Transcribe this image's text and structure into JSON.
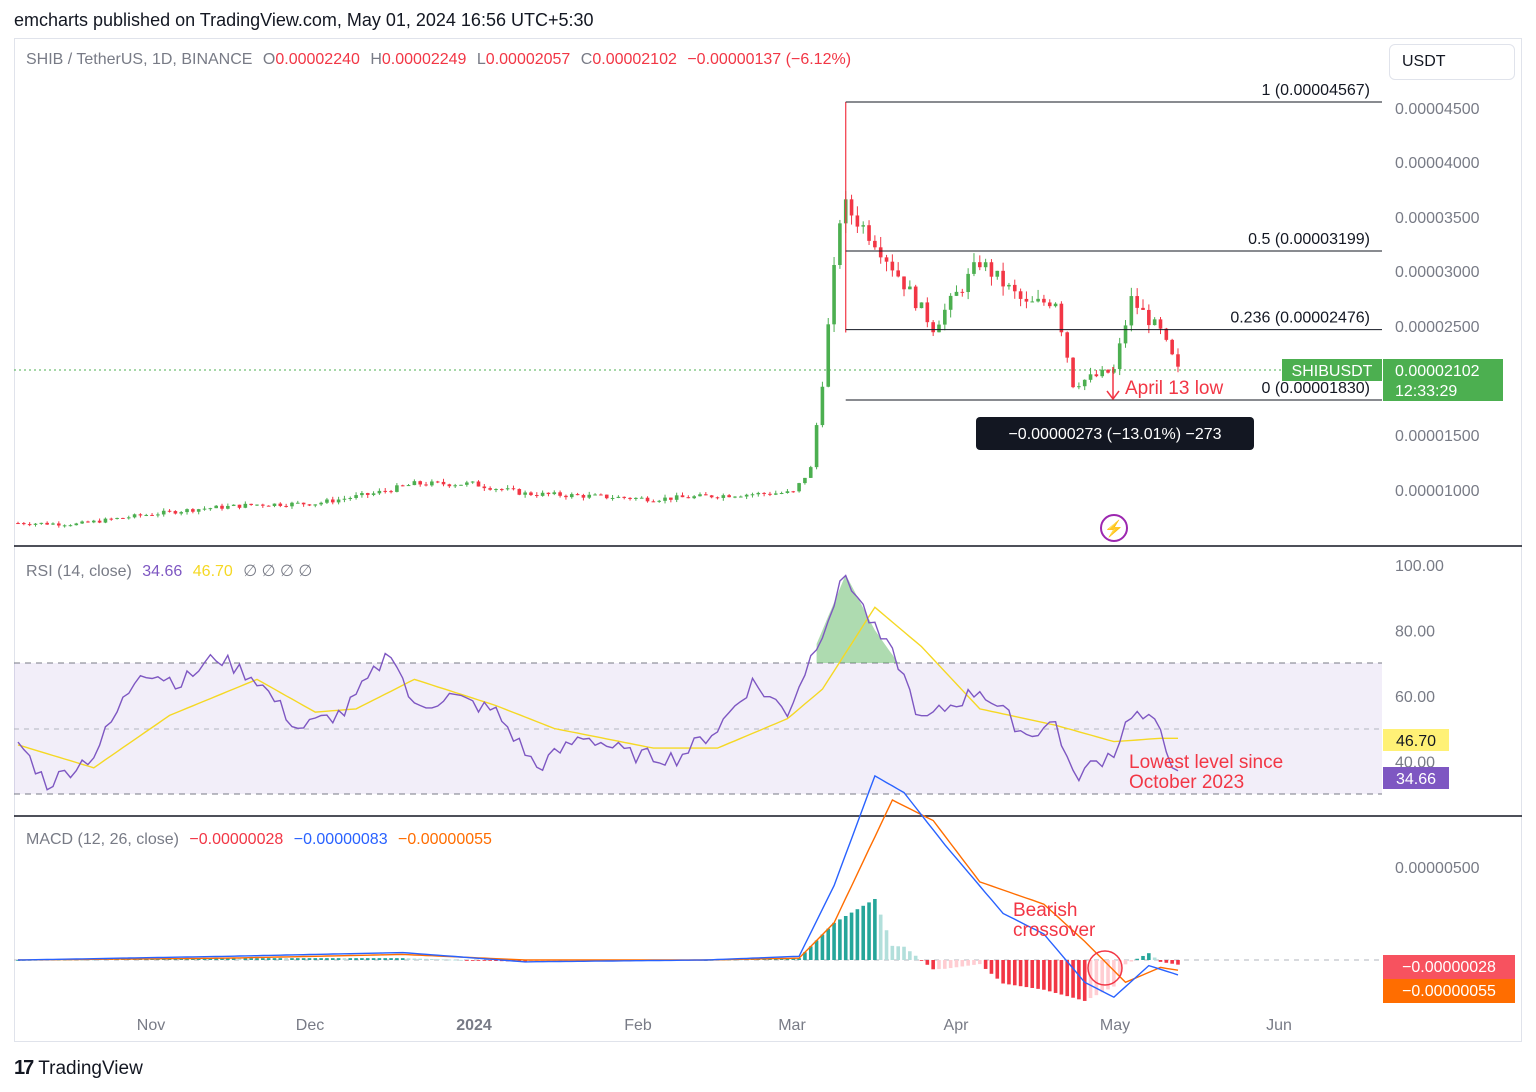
{
  "header": {
    "published_by": "emcharts published on TradingView.com, May 01, 2024 16:56 UTC+5:30"
  },
  "currency_selector": "USDT",
  "branding": {
    "logo_mark": "17",
    "logo_text": "TradingView"
  },
  "price_legend": {
    "symbol": "SHIB / TetherUS, 1D, BINANCE",
    "o_label": "O",
    "o_value": "0.00002240",
    "h_label": "H",
    "h_value": "0.00002249",
    "l_label": "L",
    "l_value": "0.00002057",
    "c_label": "C",
    "c_value": "0.00002102",
    "change": "−0.00000137 (−6.12%)"
  },
  "rsi_legend": {
    "label": "RSI (14, close)",
    "rsi_value": "34.66",
    "ma_value": "46.70",
    "na": "∅ ∅ ∅ ∅"
  },
  "macd_legend": {
    "label": "MACD (12, 26, close)",
    "hist": "−0.00000028",
    "macd": "−0.00000083",
    "signal": "−0.00000055"
  },
  "annotations": {
    "april_low": "April 13 low",
    "measure": "−0.00000273 (−13.01%) −273",
    "rsi_note_1": "Lowest level since",
    "rsi_note_2": "October 2023",
    "macd_note_1": "Bearish",
    "macd_note_2": "crossover"
  },
  "badges": {
    "symbol": "SHIBUSDT",
    "last_price": "0.00002102",
    "countdown": "12:33:29",
    "rsi_ma": "46.70",
    "rsi": "34.66",
    "macd_hist": "−0.00000028",
    "macd_signal": "−0.00000055"
  },
  "colors": {
    "up": "#26a69a",
    "up_candle": "#4caf50",
    "down": "#f23645",
    "rsi_line": "#7e57c2",
    "rsi_ma": "#f5d824",
    "macd": "#2962ff",
    "signal": "#ff6d00"
  },
  "chart_data": [
    {
      "type": "candlestick",
      "title": "SHIB / TetherUS, 1D, BINANCE",
      "x_ticks": [
        "Nov",
        "Dec",
        "2024",
        "Feb",
        "Mar",
        "Apr",
        "May",
        "Jun"
      ],
      "y_ticks": [
        "0.00004500",
        "0.00004000",
        "0.00003500",
        "0.00003000",
        "0.00002500",
        "0.00001500",
        "0.00001000"
      ],
      "ylim": [
        6.6e-06,
        4.7e-05
      ],
      "approx_close_series": [
        [
          "2023-10-15",
          7e-06
        ],
        [
          "2023-10-25",
          6.9e-06
        ],
        [
          "2023-11-05",
          7.7e-06
        ],
        [
          "2023-11-15",
          8.3e-06
        ],
        [
          "2023-11-25",
          8.7e-06
        ],
        [
          "2023-12-05",
          8.8e-06
        ],
        [
          "2023-12-15",
          9.7e-06
        ],
        [
          "2023-12-22",
          1.06e-05
        ],
        [
          "2024-01-01",
          1.06e-05
        ],
        [
          "2024-01-10",
          9.7e-06
        ],
        [
          "2024-01-20",
          9.5e-06
        ],
        [
          "2024-02-01",
          9.2e-06
        ],
        [
          "2024-02-15",
          9.6e-06
        ],
        [
          "2024-02-25",
          9.8e-06
        ],
        [
          "2024-02-28",
          1.2e-05
        ],
        [
          "2024-03-01",
          2e-05
        ],
        [
          "2024-03-04",
          3.5e-05
        ],
        [
          "2024-03-05",
          3.6e-05
        ],
        [
          "2024-03-10",
          3.3e-05
        ],
        [
          "2024-03-15",
          2.9e-05
        ],
        [
          "2024-03-20",
          2.5e-05
        ],
        [
          "2024-03-28",
          3.1e-05
        ],
        [
          "2024-04-05",
          2.7e-05
        ],
        [
          "2024-04-10",
          2.75e-05
        ],
        [
          "2024-04-13",
          1.98e-05
        ],
        [
          "2024-04-20",
          2.1e-05
        ],
        [
          "2024-04-23",
          2.75e-05
        ],
        [
          "2024-04-28",
          2.45e-05
        ],
        [
          "2024-05-01",
          2.1e-05
        ]
      ],
      "fibonacci": [
        {
          "label": "1 (0.00004567)",
          "value": 4.567e-05
        },
        {
          "label": "0.5 (0.00003199)",
          "value": 3.199e-05
        },
        {
          "label": "0.236 (0.00002476)",
          "value": 2.476e-05
        },
        {
          "label": "0 (0.00001830)",
          "value": 1.83e-05
        }
      ]
    },
    {
      "type": "line",
      "title": "RSI (14, close)",
      "y_ticks": [
        "100.00",
        "80.00",
        "60.00",
        "40.00"
      ],
      "ylim": [
        25,
        100
      ],
      "bands": [
        30,
        50,
        70
      ],
      "series": [
        {
          "name": "RSI",
          "points": [
            [
              "2023-10-15",
              46
            ],
            [
              "2023-10-20",
              33
            ],
            [
              "2023-10-28",
              42
            ],
            [
              "2023-11-05",
              68
            ],
            [
              "2023-11-12",
              64
            ],
            [
              "2023-11-18",
              72
            ],
            [
              "2023-11-25",
              65
            ],
            [
              "2023-12-02",
              50
            ],
            [
              "2023-12-10",
              55
            ],
            [
              "2023-12-18",
              74
            ],
            [
              "2023-12-22",
              56
            ],
            [
              "2023-12-28",
              60
            ],
            [
              "2024-01-05",
              55
            ],
            [
              "2024-01-12",
              38
            ],
            [
              "2024-01-20",
              48
            ],
            [
              "2024-01-28",
              42
            ],
            [
              "2024-02-05",
              41
            ],
            [
              "2024-02-12",
              50
            ],
            [
              "2024-02-18",
              64
            ],
            [
              "2024-02-24",
              55
            ],
            [
              "2024-03-01",
              80
            ],
            [
              "2024-03-05",
              97
            ],
            [
              "2024-03-10",
              80
            ],
            [
              "2024-03-14",
              70
            ],
            [
              "2024-03-18",
              52
            ],
            [
              "2024-03-28",
              62
            ],
            [
              "2024-04-05",
              48
            ],
            [
              "2024-04-10",
              52
            ],
            [
              "2024-04-13",
              35
            ],
            [
              "2024-04-20",
              43
            ],
            [
              "2024-04-23",
              55
            ],
            [
              "2024-04-28",
              50
            ],
            [
              "2024-05-01",
              35
            ]
          ]
        },
        {
          "name": "RSI-based MA",
          "points": [
            [
              "2023-10-15",
              45
            ],
            [
              "2023-10-28",
              38
            ],
            [
              "2023-11-10",
              54
            ],
            [
              "2023-11-25",
              65
            ],
            [
              "2023-12-05",
              55
            ],
            [
              "2023-12-12",
              56
            ],
            [
              "2023-12-22",
              65
            ],
            [
              "2024-01-05",
              57
            ],
            [
              "2024-01-15",
              50
            ],
            [
              "2024-02-01",
              44
            ],
            [
              "2024-02-12",
              44
            ],
            [
              "2024-02-24",
              53
            ],
            [
              "2024-03-01",
              62
            ],
            [
              "2024-03-10",
              87
            ],
            [
              "2024-03-18",
              75
            ],
            [
              "2024-03-28",
              56
            ],
            [
              "2024-04-10",
              51
            ],
            [
              "2024-04-20",
              46
            ],
            [
              "2024-04-28",
              47
            ],
            [
              "2024-05-01",
              47
            ]
          ]
        }
      ]
    },
    {
      "type": "line",
      "title": "MACD (12, 26, close)",
      "y_ticks": [
        "0.00000500"
      ],
      "ylim": [
        -4e-06,
        1.15e-05
      ],
      "series": [
        {
          "name": "MACD",
          "points": [
            [
              "2023-10-15",
              0
            ],
            [
              "2023-11-20",
              2e-07
            ],
            [
              "2023-12-20",
              4e-07
            ],
            [
              "2024-01-10",
              -1e-07
            ],
            [
              "2024-02-10",
              0
            ],
            [
              "2024-02-26",
              2e-07
            ],
            [
              "2024-03-03",
              4e-06
            ],
            [
              "2024-03-10",
              9.9e-06
            ],
            [
              "2024-03-15",
              9e-06
            ],
            [
              "2024-03-22",
              6.2e-06
            ],
            [
              "2024-04-01",
              2.5e-06
            ],
            [
              "2024-04-08",
              1.4e-06
            ],
            [
              "2024-04-15",
              -1.2e-06
            ],
            [
              "2024-04-20",
              -2e-06
            ],
            [
              "2024-04-26",
              -3e-07
            ],
            [
              "2024-05-01",
              -8e-07
            ]
          ]
        },
        {
          "name": "Signal",
          "points": [
            [
              "2023-10-15",
              0
            ],
            [
              "2023-11-20",
              1e-07
            ],
            [
              "2023-12-20",
              3e-07
            ],
            [
              "2024-01-10",
              0
            ],
            [
              "2024-02-10",
              0
            ],
            [
              "2024-02-26",
              1e-07
            ],
            [
              "2024-03-03",
              2e-06
            ],
            [
              "2024-03-13",
              8.6e-06
            ],
            [
              "2024-03-20",
              7.5e-06
            ],
            [
              "2024-03-28",
              4.2e-06
            ],
            [
              "2024-04-08",
              3e-06
            ],
            [
              "2024-04-15",
              1e-06
            ],
            [
              "2024-04-22",
              -1.2e-06
            ],
            [
              "2024-04-28",
              -4e-07
            ],
            [
              "2024-05-01",
              -5.5e-07
            ]
          ]
        }
      ]
    }
  ]
}
